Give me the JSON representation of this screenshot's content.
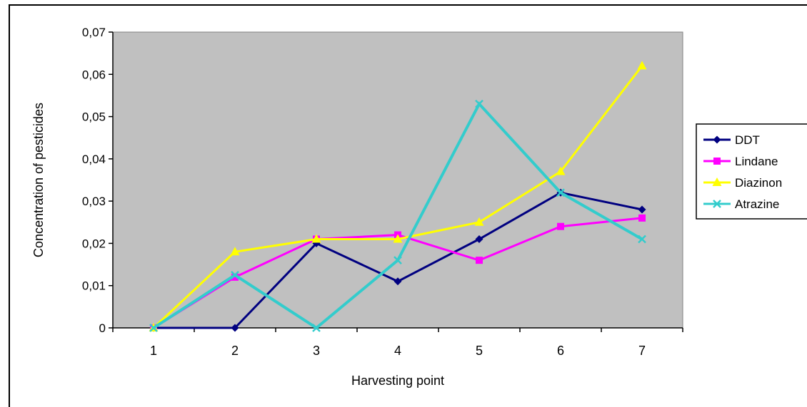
{
  "chart_data": {
    "type": "line",
    "title": "",
    "xlabel": "Harvesting point",
    "ylabel": "Concentration of pesticides",
    "categories": [
      "1",
      "2",
      "3",
      "4",
      "5",
      "6",
      "7"
    ],
    "y_ticks": [
      "0",
      "0,01",
      "0,02",
      "0,03",
      "0,04",
      "0,05",
      "0,06",
      "0,07"
    ],
    "ylim": [
      0,
      0.07
    ],
    "grid": false,
    "legend_position": "right",
    "plot_background": "#c0c0c0",
    "series": [
      {
        "name": "DDT",
        "color": "#000080",
        "marker": "diamond",
        "values": [
          0,
          0,
          0.02,
          0.011,
          0.021,
          0.032,
          0.028
        ]
      },
      {
        "name": "Lindane",
        "color": "#ff00ff",
        "marker": "square",
        "values": [
          0,
          0.012,
          0.021,
          0.022,
          0.016,
          0.024,
          0.026
        ]
      },
      {
        "name": "Diazinon",
        "color": "#ffff00",
        "marker": "triangle",
        "values": [
          0,
          0.018,
          0.021,
          0.021,
          0.025,
          0.037,
          0.062
        ]
      },
      {
        "name": "Atrazine",
        "color": "#33cccc",
        "marker": "x",
        "values": [
          0,
          0.0125,
          0,
          0.016,
          0.053,
          0.032,
          0.021
        ]
      }
    ]
  }
}
